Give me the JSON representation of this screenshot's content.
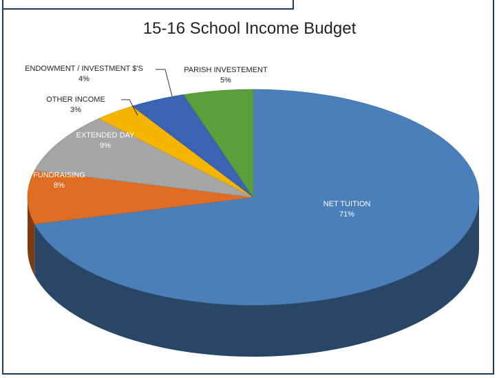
{
  "chart_data": {
    "type": "pie",
    "title": "15-16 School Income Budget",
    "slices": [
      {
        "label": "NET TUITION",
        "percent_label": "71%",
        "value": 71,
        "color": "#4a7fba"
      },
      {
        "label": "FUNDRAISING",
        "percent_label": "8%",
        "value": 8,
        "color": "#e06d24"
      },
      {
        "label": "EXTENDED DAY",
        "percent_label": "9%",
        "value": 9,
        "color": "#a5a5a5"
      },
      {
        "label": "OTHER INCOME",
        "percent_label": "3%",
        "value": 3,
        "color": "#f4b400"
      },
      {
        "label": "ENDOWMENT / INVESTMENT $'S",
        "percent_label": "4%",
        "value": 4,
        "color": "#3a63b4"
      },
      {
        "label": "PARISH INVESTEMENT",
        "percent_label": "5%",
        "value": 5,
        "color": "#5b9f3c"
      }
    ],
    "legend": "none",
    "style": "3d-pie"
  }
}
